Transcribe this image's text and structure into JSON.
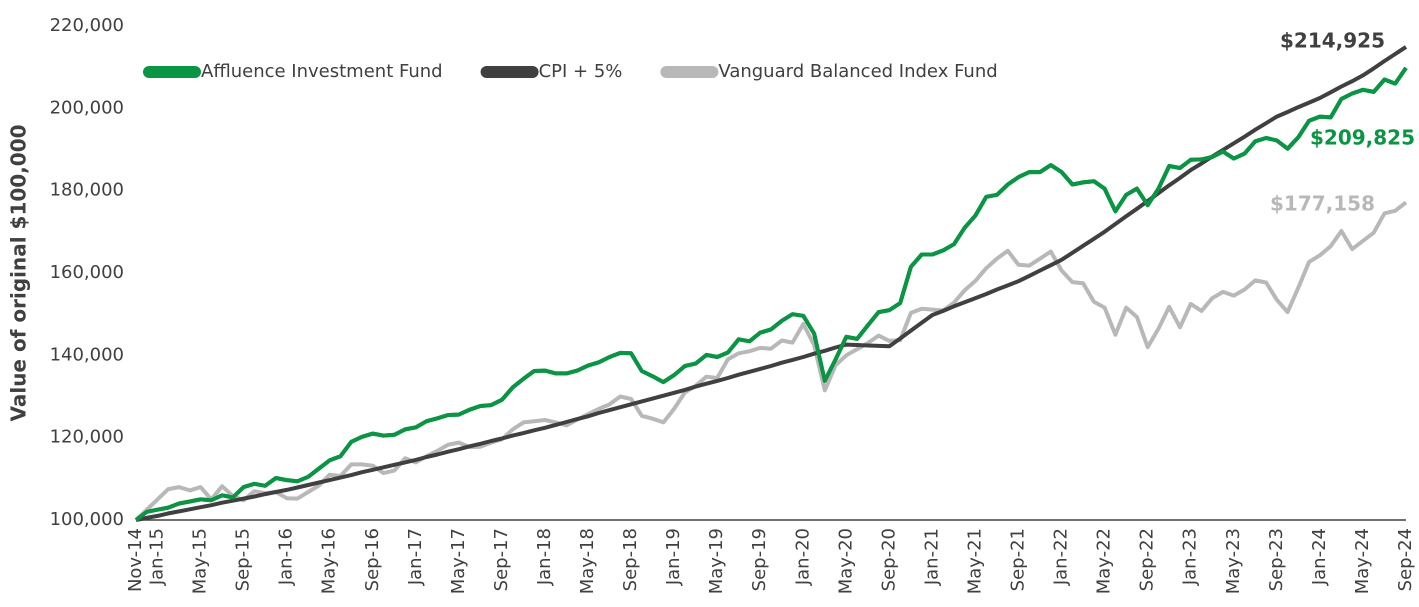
{
  "chart_data": {
    "type": "line",
    "y_label": "Value of original $100,000",
    "categories": [
      "Nov-14",
      null,
      "Jan-15",
      null,
      null,
      null,
      "May-15",
      null,
      null,
      null,
      "Sep-15",
      null,
      null,
      null,
      "Jan-16",
      null,
      null,
      null,
      "May-16",
      null,
      null,
      null,
      "Sep-16",
      null,
      null,
      null,
      "Jan-17",
      null,
      null,
      null,
      "May-17",
      null,
      null,
      null,
      "Sep-17",
      null,
      null,
      null,
      "Jan-18",
      null,
      null,
      null,
      "May-18",
      null,
      null,
      null,
      "Sep-18",
      null,
      null,
      null,
      "Jan-19",
      null,
      null,
      null,
      "May-19",
      null,
      null,
      null,
      "Sep-19",
      null,
      null,
      null,
      "Jan-20",
      null,
      null,
      null,
      "May-20",
      null,
      null,
      null,
      "Sep-20",
      null,
      null,
      null,
      "Jan-21",
      null,
      null,
      null,
      "May-21",
      null,
      null,
      null,
      "Sep-21",
      null,
      null,
      null,
      "Jan-22",
      null,
      null,
      null,
      "May-22",
      null,
      null,
      null,
      "Sep-22",
      null,
      null,
      null,
      "Jan-23",
      null,
      null,
      null,
      "May-23",
      null,
      null,
      null,
      "Sep-23",
      null,
      null,
      null,
      "Jan-24",
      null,
      null,
      null,
      "May-24",
      null,
      null,
      null,
      "Sep-24"
    ],
    "ylim": [
      100000,
      220000
    ],
    "yticks": [
      {
        "value": 100000,
        "label": "100,000"
      },
      {
        "value": 120000,
        "label": "120,000"
      },
      {
        "value": 140000,
        "label": "140,000"
      },
      {
        "value": 160000,
        "label": "160,000"
      },
      {
        "value": 180000,
        "label": "180,000"
      },
      {
        "value": 200000,
        "label": "200,000"
      },
      {
        "value": 220000,
        "label": "220,000"
      }
    ],
    "grid": false,
    "legend": "top-left",
    "series": [
      {
        "name": "Affluence Investment Fund",
        "color": "#0a9444",
        "last_label": "$209,825",
        "values": [
          100000,
          102000,
          102500,
          103000,
          104000,
          104500,
          105000,
          104800,
          106000,
          105500,
          108000,
          108800,
          108300,
          110200,
          109700,
          109400,
          110500,
          112500,
          114500,
          115500,
          119000,
          120200,
          121000,
          120500,
          120700,
          122000,
          122500,
          124000,
          124700,
          125500,
          125600,
          126800,
          127700,
          127900,
          129200,
          132200,
          134300,
          136200,
          136300,
          135600,
          135600,
          136300,
          137500,
          138300,
          139600,
          140600,
          140500,
          136200,
          134900,
          133500,
          135200,
          137400,
          138000,
          140100,
          139600,
          140700,
          143900,
          143400,
          145500,
          146300,
          148400,
          150000,
          149600,
          145300,
          133800,
          139000,
          144500,
          144000,
          147300,
          150500,
          151000,
          152700,
          161500,
          164500,
          164500,
          165500,
          167000,
          171000,
          174000,
          178500,
          179000,
          181500,
          183300,
          184500,
          184500,
          186200,
          184500,
          181500,
          182000,
          182300,
          180500,
          175000,
          179000,
          180500,
          176500,
          180500,
          186000,
          185500,
          187500,
          187600,
          188200,
          189500,
          187800,
          189000,
          192000,
          192800,
          192200,
          190200,
          193000,
          197000,
          198000,
          197800,
          202300,
          203600,
          204500,
          204000,
          207000,
          206000,
          209825
        ]
      },
      {
        "name": "CPI + 5%",
        "color": "#404040",
        "last_label": "$214,925",
        "values": [
          100000,
          100500,
          101000,
          101600,
          102100,
          102600,
          103100,
          103600,
          104200,
          104700,
          105200,
          105700,
          106300,
          106800,
          107300,
          107900,
          108500,
          109100,
          109700,
          110300,
          110900,
          111600,
          112200,
          112800,
          113400,
          114000,
          114600,
          115300,
          115900,
          116600,
          117200,
          117900,
          118500,
          119200,
          119800,
          120500,
          121100,
          121800,
          122400,
          123100,
          123800,
          124500,
          125200,
          126000,
          126700,
          127400,
          128100,
          128800,
          129500,
          130200,
          130900,
          131600,
          132400,
          133100,
          133800,
          134500,
          135300,
          136000,
          136700,
          137400,
          138200,
          138900,
          139600,
          140400,
          141100,
          141900,
          142600,
          142500,
          142400,
          142300,
          142200,
          144100,
          146000,
          147900,
          149800,
          150800,
          151900,
          152900,
          153900,
          154900,
          156000,
          157000,
          158000,
          159300,
          160600,
          161900,
          163200,
          164900,
          166600,
          168300,
          170000,
          171900,
          173800,
          175600,
          177500,
          179400,
          181300,
          183100,
          185000,
          186600,
          188300,
          189900,
          191500,
          193100,
          194800,
          196400,
          198000,
          199100,
          200300,
          201400,
          202500,
          203900,
          205300,
          206600,
          208000,
          209700,
          211500,
          213200,
          214925
        ]
      },
      {
        "name": "Vanguard Balanced Index Fund",
        "color": "#b8b8b8",
        "last_label": "$177,158",
        "values": [
          100000,
          102500,
          105000,
          107500,
          108000,
          107200,
          108000,
          105000,
          108200,
          105800,
          104800,
          107000,
          106500,
          106800,
          105300,
          105200,
          106800,
          108400,
          111000,
          110700,
          113500,
          113500,
          113200,
          111400,
          112000,
          115000,
          114000,
          115500,
          116800,
          118300,
          118800,
          117700,
          117800,
          118800,
          119600,
          122000,
          123700,
          124000,
          124300,
          123700,
          123000,
          124400,
          125700,
          127000,
          128100,
          130000,
          129400,
          125300,
          124600,
          123700,
          127000,
          131000,
          132600,
          134800,
          134500,
          139000,
          140500,
          141000,
          141800,
          141600,
          143600,
          143100,
          147600,
          142500,
          131500,
          137600,
          140000,
          141500,
          143000,
          144800,
          143500,
          143700,
          150300,
          151300,
          151100,
          150900,
          152800,
          155800,
          158100,
          161200,
          163500,
          165400,
          162000,
          161800,
          163500,
          165200,
          160600,
          157800,
          157500,
          153000,
          151600,
          145000,
          151600,
          149300,
          142000,
          146500,
          151800,
          146800,
          152500,
          150800,
          153900,
          155400,
          154500,
          156000,
          158200,
          157700,
          153500,
          150500,
          156500,
          162700,
          164300,
          166500,
          170200,
          165800,
          167800,
          169800,
          174500,
          175100,
          177158
        ]
      }
    ]
  }
}
